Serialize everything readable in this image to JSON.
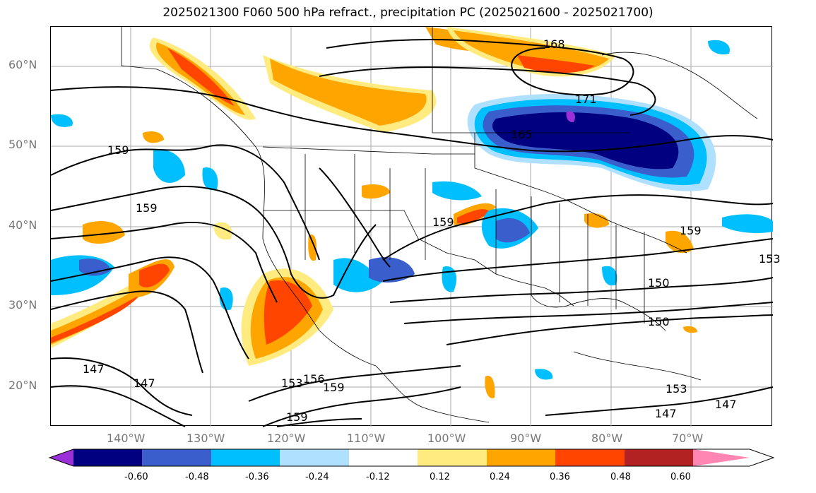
{
  "title": "2025021300 F060 500 hPa refract., precipitation PC (2025021600 - 2025021700)",
  "lat_labels": [
    "60°N",
    "50°N",
    "40°N",
    "30°N",
    "20°N"
  ],
  "lon_labels": [
    "140°W",
    "130°W",
    "120°W",
    "110°W",
    "100°W",
    "90°W",
    "80°W",
    "70°W"
  ],
  "contour_labels": [
    "168",
    "171",
    "165",
    "159",
    "159",
    "159",
    "159",
    "153",
    "150",
    "150",
    "153",
    "156",
    "159",
    "147",
    "147",
    "147",
    "147",
    "159",
    "153"
  ],
  "colorbar": {
    "ticks": [
      "-0.60",
      "-0.48",
      "-0.36",
      "-0.24",
      "-0.12",
      "0.12",
      "0.24",
      "0.36",
      "0.48",
      "0.60"
    ],
    "colors": [
      "#9b30d9",
      "#000080",
      "#3a5fcd",
      "#00bfff",
      "#b0e0ff",
      "#ffffff",
      "#ffeb7f",
      "#ffa500",
      "#ff4500",
      "#b22222",
      "#ff85b3"
    ]
  }
}
